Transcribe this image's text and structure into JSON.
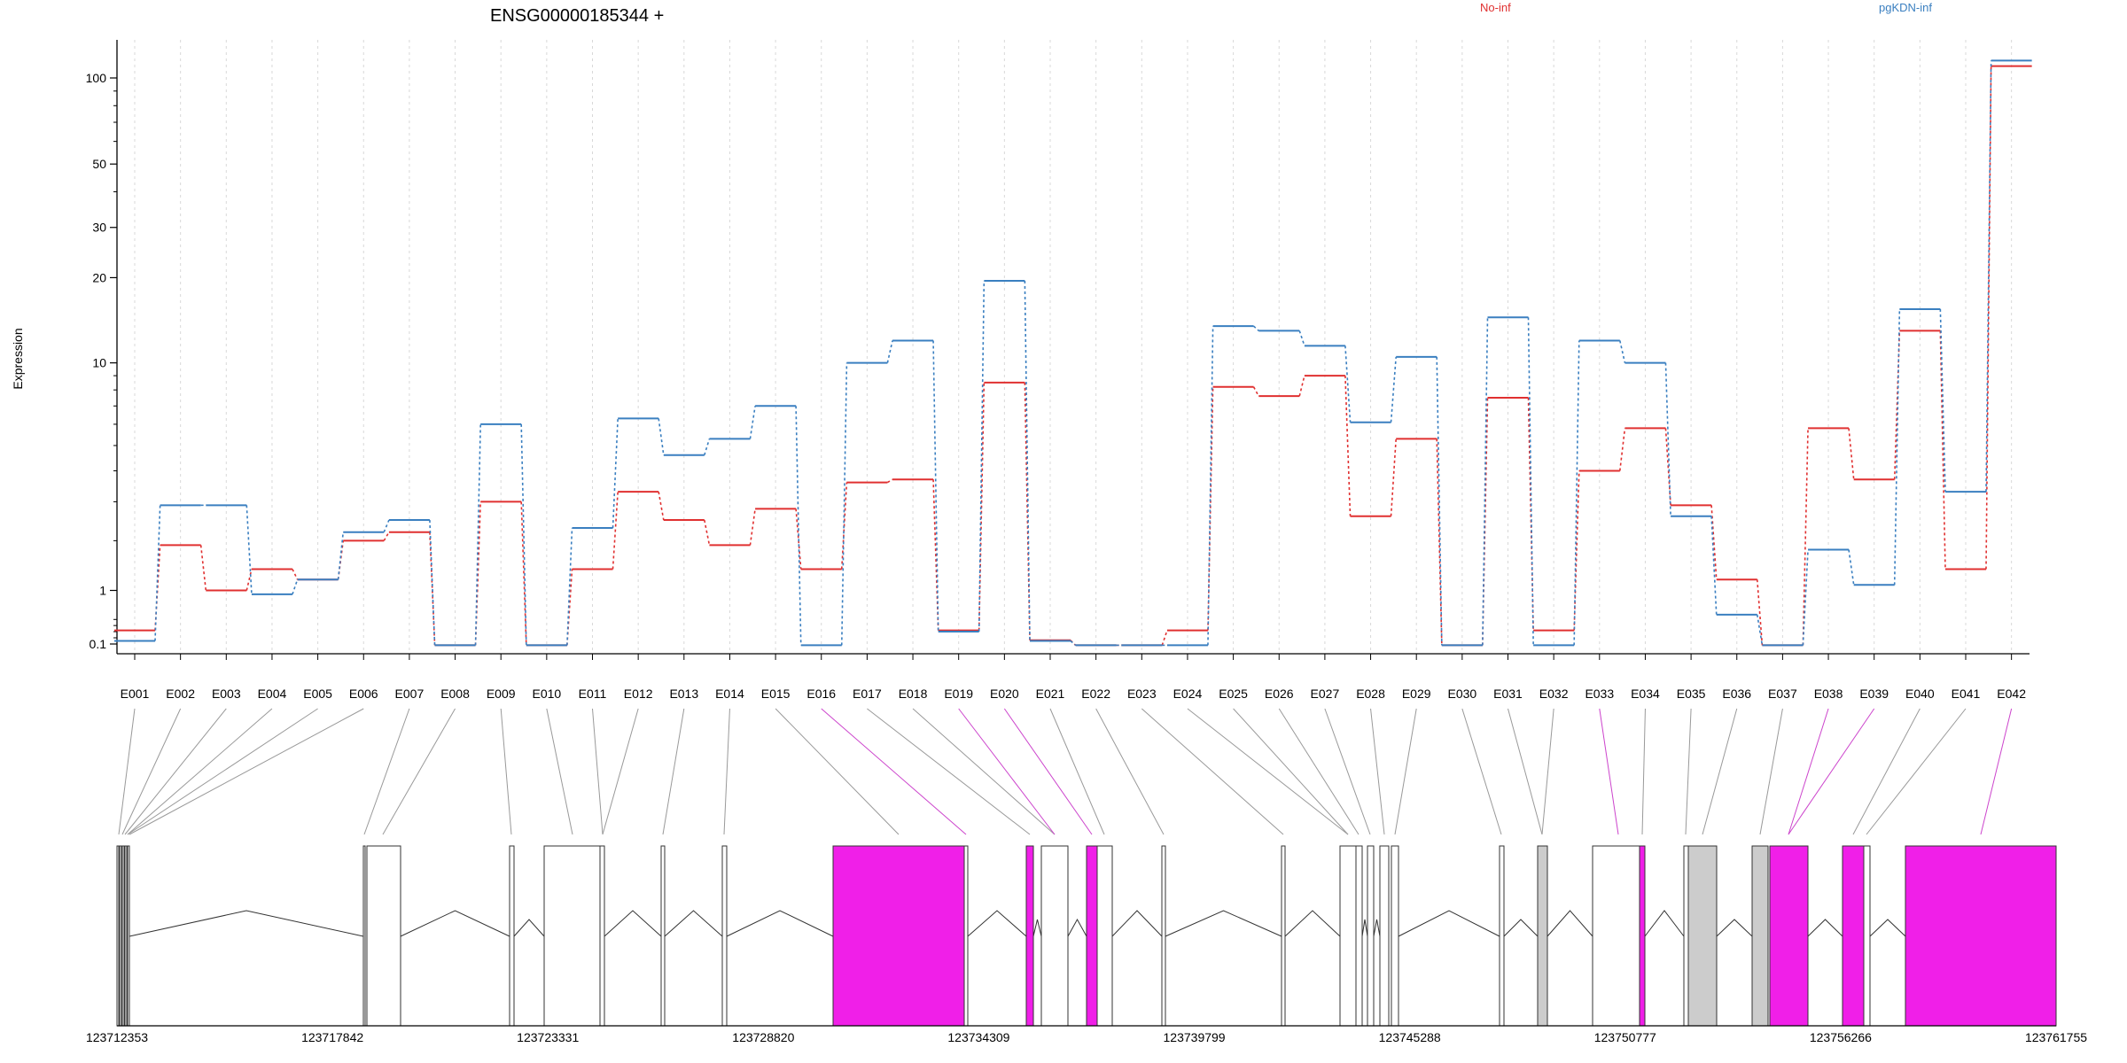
{
  "chart_data": {
    "type": "line",
    "title": "ENSG00000185344 +",
    "ylabel": "Expression",
    "y_scale": "asinh-like (linear near zero, log at high values)",
    "ylim": [
      0.07,
      130
    ],
    "y_ticks": [
      0.1,
      1,
      10,
      20,
      30,
      50,
      100
    ],
    "y_tick_labels": [
      "0.1",
      "1",
      "10",
      "20",
      "30",
      "50",
      "100"
    ],
    "grid": "vertical dotted lines at exon centers",
    "legend": "top, text labels colored by condition",
    "categories": [
      "E001",
      "E002",
      "E003",
      "E004",
      "E005",
      "E006",
      "E007",
      "E008",
      "E009",
      "E010",
      "E011",
      "E012",
      "E013",
      "E014",
      "E015",
      "E016",
      "E017",
      "E018",
      "E019",
      "E020",
      "E021",
      "E022",
      "E023",
      "E024",
      "E025",
      "E026",
      "E027",
      "E028",
      "E029",
      "E030",
      "E031",
      "E032",
      "E033",
      "E034",
      "E035",
      "E036",
      "E037",
      "E038",
      "E039",
      "E040",
      "E041",
      "E042"
    ],
    "series": [
      {
        "name": "No-inf",
        "color": "#e03030",
        "values": [
          0.32,
          1.9,
          1.0,
          1.4,
          1.2,
          2.0,
          2.2,
          0.08,
          3.0,
          0.08,
          1.4,
          3.3,
          2.5,
          1.9,
          2.8,
          1.4,
          3.6,
          3.7,
          0.32,
          8.5,
          0.16,
          0.08,
          0.08,
          0.32,
          8.2,
          7.6,
          9.0,
          2.6,
          5.3,
          0.08,
          7.5,
          0.32,
          4.0,
          5.8,
          2.9,
          1.2,
          0.08,
          5.8,
          3.7,
          13.0,
          1.4,
          110
        ]
      },
      {
        "name": "pgKDN-inf",
        "color": "#3a7fc0",
        "values": [
          0.15,
          2.9,
          2.9,
          0.93,
          1.2,
          2.2,
          2.5,
          0.08,
          6.0,
          0.08,
          2.3,
          6.3,
          4.6,
          5.3,
          7.0,
          0.08,
          10.0,
          12.0,
          0.3,
          19.5,
          0.15,
          0.08,
          0.08,
          0.08,
          13.5,
          13.0,
          11.5,
          6.1,
          10.5,
          0.08,
          14.5,
          0.08,
          12.0,
          10.0,
          2.6,
          0.58,
          0.08,
          1.8,
          1.1,
          15.5,
          3.3,
          115
        ]
      }
    ],
    "gene_model": {
      "coordinate_labels": [
        "123712353",
        "123717842",
        "123723331",
        "123728820",
        "123734309",
        "123739799",
        "123745288",
        "123750777",
        "123756266",
        "123761755"
      ],
      "highlight_color": "#f01fe8",
      "significant_color": "#cc44cc",
      "exon_fill": "#ffffff",
      "grey_fill": "#cccccc"
    }
  }
}
